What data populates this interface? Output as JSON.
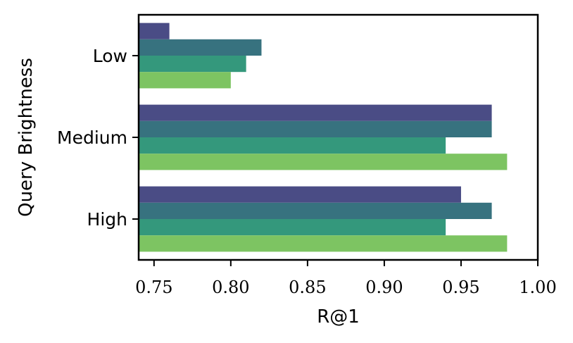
{
  "chart_data": {
    "type": "bar",
    "orientation": "horizontal",
    "categories": [
      "Low",
      "Medium",
      "High"
    ],
    "series": [
      {
        "values": [
          0.76,
          0.97,
          0.95
        ],
        "color": "#4a4c85"
      },
      {
        "values": [
          0.82,
          0.97,
          0.97
        ],
        "color": "#37727f"
      },
      {
        "values": [
          0.81,
          0.94,
          0.94
        ],
        "color": "#34987c"
      },
      {
        "values": [
          0.8,
          0.98,
          0.98
        ],
        "color": "#7dc462"
      }
    ],
    "xlabel": "R@1",
    "ylabel": "Query Brightness",
    "xlim": [
      0.74,
      1.0
    ],
    "xticks": [
      "0.75",
      "0.80",
      "0.85",
      "0.90",
      "0.95",
      "1.00"
    ],
    "grid": false,
    "legend": false
  }
}
